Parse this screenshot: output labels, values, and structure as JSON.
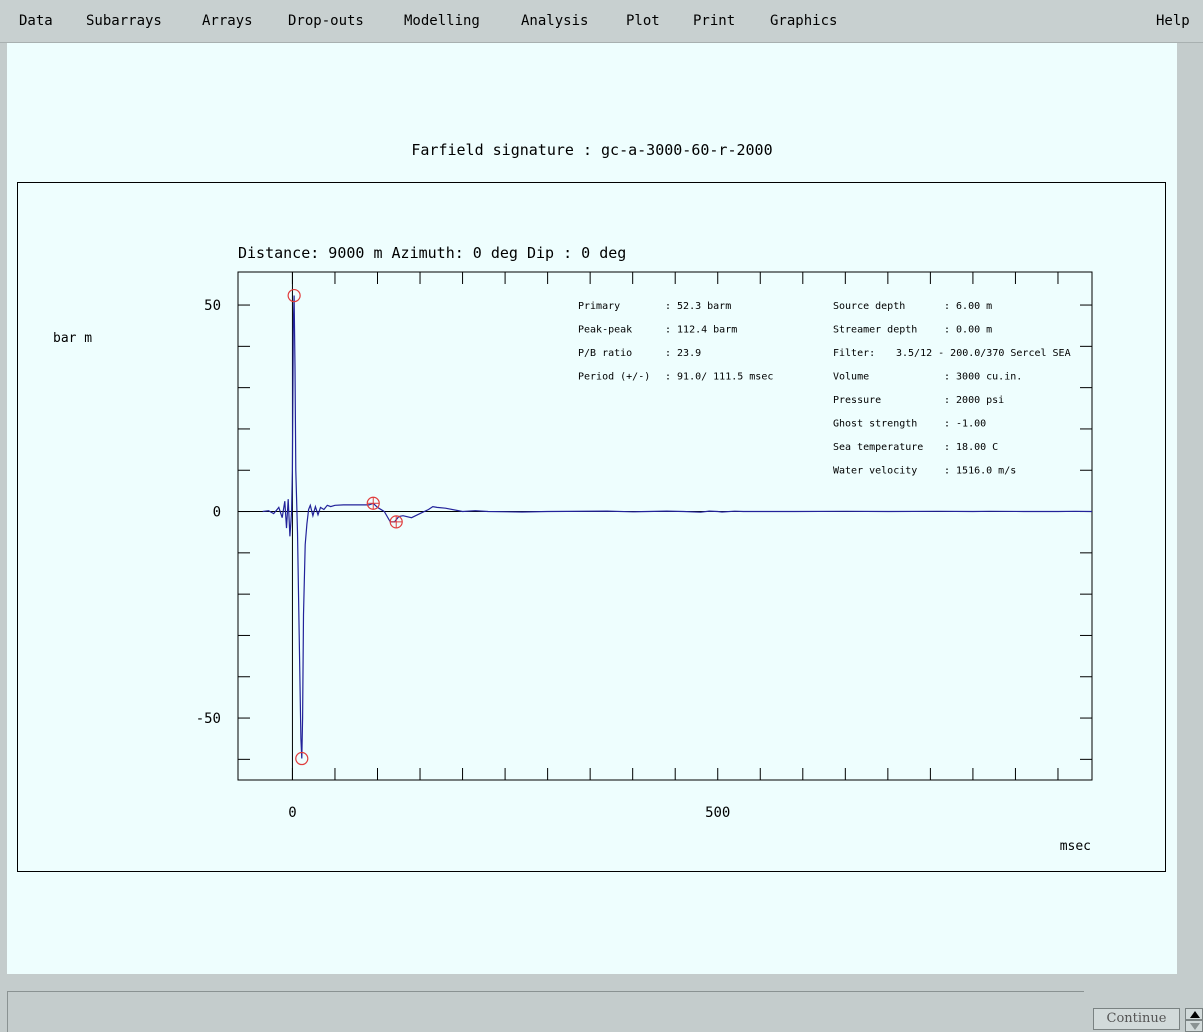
{
  "menu": {
    "items": [
      "Data",
      "Subarrays",
      "Arrays",
      "Drop-outs",
      "Modelling",
      "Analysis",
      "Plot",
      "Print",
      "Graphics"
    ],
    "help": "Help"
  },
  "plot": {
    "title": "Farfield signature : gc-a-3000-60-r-2000"
  },
  "chart_data": {
    "type": "line",
    "subtitle": "Distance: 9000 m    Azimuth:   0 deg      Dip :   0 deg",
    "ylabel": "bar m",
    "xlabel": "msec",
    "xlim": [
      -64,
      940
    ],
    "ylim": [
      -65,
      58
    ],
    "x_ticks": [
      0,
      500
    ],
    "y_ticks": [
      50,
      0,
      -50
    ],
    "grid": false,
    "line_color": "#22229a",
    "marker_color": "#e03c3c",
    "series": [
      {
        "x": [
          -35,
          -28,
          -22,
          -16,
          -12,
          -9,
          -7,
          -5,
          -3,
          -1,
          0,
          1,
          2,
          3,
          4,
          6,
          8,
          10,
          11,
          12,
          13,
          15,
          17,
          19,
          21,
          24,
          27,
          30,
          33,
          37,
          41,
          45,
          50,
          60,
          75,
          90,
          95,
          100,
          108,
          115,
          120,
          125,
          130,
          140,
          150,
          160,
          165,
          170,
          180,
          200,
          215,
          230,
          270,
          300,
          370,
          400,
          440,
          460,
          480,
          490,
          500,
          505,
          520,
          530,
          590,
          650,
          700,
          760,
          800,
          820,
          860,
          900,
          920,
          940
        ],
        "y": [
          0,
          0.2,
          -0.5,
          1.0,
          -1.5,
          2.5,
          -4.0,
          3.0,
          -6.0,
          0,
          10,
          45,
          52.3,
          35,
          10,
          -5,
          -30,
          -55,
          -59.8,
          -50,
          -25,
          -8,
          -3,
          0.5,
          1.5,
          -1,
          1.2,
          -0.8,
          1.0,
          0.5,
          1.5,
          1.2,
          1.5,
          1.6,
          1.6,
          1.6,
          2.0,
          1.0,
          0,
          -2.5,
          -2.5,
          -1.2,
          -1.0,
          -1.5,
          -0.5,
          0.5,
          1.2,
          1.0,
          0.8,
          0,
          0.2,
          0,
          -0.1,
          0,
          0.1,
          -0.05,
          0.1,
          0,
          -0.15,
          0.1,
          0,
          -0.1,
          0.08,
          0,
          0,
          0.07,
          0,
          0.06,
          0,
          0.05,
          0,
          0,
          0.05,
          0
        ]
      }
    ],
    "markers": [
      {
        "x": 2,
        "y": 52.3,
        "symbol": "circle"
      },
      {
        "x": 11,
        "y": -59.8,
        "symbol": "circle"
      },
      {
        "x": 95,
        "y": 2.0,
        "symbol": "circle-cross"
      },
      {
        "x": 122,
        "y": -2.5,
        "symbol": "circle-cross"
      }
    ],
    "stats_left": [
      {
        "label": "Primary",
        "value": ":  52.3 barm"
      },
      {
        "label": "Peak-peak",
        "value": ": 112.4 barm"
      },
      {
        "label": "P/B ratio",
        "value": ":  23.9"
      },
      {
        "label": "Period (+/-)",
        "value": ":  91.0/ 111.5  msec"
      }
    ],
    "stats_right": [
      {
        "label": "Source depth",
        "value": ":  6.00 m"
      },
      {
        "label": "Streamer depth",
        "value": ":  0.00 m"
      },
      {
        "label": "Filter:",
        "value": "3.5/12 - 200.0/370  Sercel SEA"
      },
      {
        "label": "Volume",
        "value": ":  3000 cu.in."
      },
      {
        "label": "Pressure",
        "value": ":  2000 psi"
      },
      {
        "label": "Ghost strength",
        "value": ": -1.00"
      },
      {
        "label": "Sea temperature",
        "value": ": 18.00 C"
      },
      {
        "label": "Water velocity",
        "value": ": 1516.0 m/s"
      }
    ]
  },
  "status": {
    "continue_label": "Continue"
  }
}
